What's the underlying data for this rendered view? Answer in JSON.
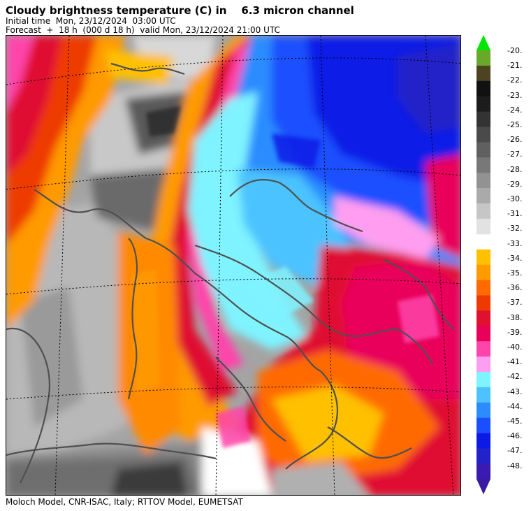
{
  "header": {
    "title": "Cloudy brightness temperature (C) in    6.3 micron channel",
    "initial_time": "Initial time  Mon, 23/12/2024  03:00 UTC",
    "forecast": "Forecast  +  18 h  (000 d 18 h)  valid Mon, 23/12/2024 21:00 UTC"
  },
  "footer": {
    "credits": "Moloch Model, CNR-ISAC, Italy; RTTOV Model, EUMETSAT"
  },
  "legend": {
    "labels": [
      "-20.",
      "-21.",
      "-22.",
      "-23.",
      "-24.",
      "-25.",
      "-26.",
      "-27.",
      "-28.",
      "-29.",
      "-30.",
      "-31.",
      "-32.",
      "-33.",
      "-34.",
      "-35.",
      "-36.",
      "-37.",
      "-38.",
      "-39.",
      "-40.",
      "-41.",
      "-42.",
      "-43.",
      "-44.",
      "-45.",
      "-46.",
      "-47.",
      "-48."
    ],
    "top_colors": [
      "#6aa82a",
      "#4e4321",
      "#111111",
      "#1c1c1c",
      "#333333",
      "#4a4a4a",
      "#606060",
      "#787878",
      "#929292",
      "#aaaaaa",
      "#c6c6c6",
      "#e2e2e2"
    ],
    "bottom_colors": [
      "#ffc000",
      "#ff9a00",
      "#ff6a00",
      "#ee3a00",
      "#e01030",
      "#e8005a",
      "#ff44aa",
      "#ff9ef0",
      "#7ff3ff",
      "#4cc3ff",
      "#2b8cff",
      "#1a4fff",
      "#0c1ae6",
      "#2222c8",
      "#3a1ab0"
    ],
    "top_arrow_color": "#00e600",
    "bottom_arrow_color": "#3a1aa0"
  }
}
